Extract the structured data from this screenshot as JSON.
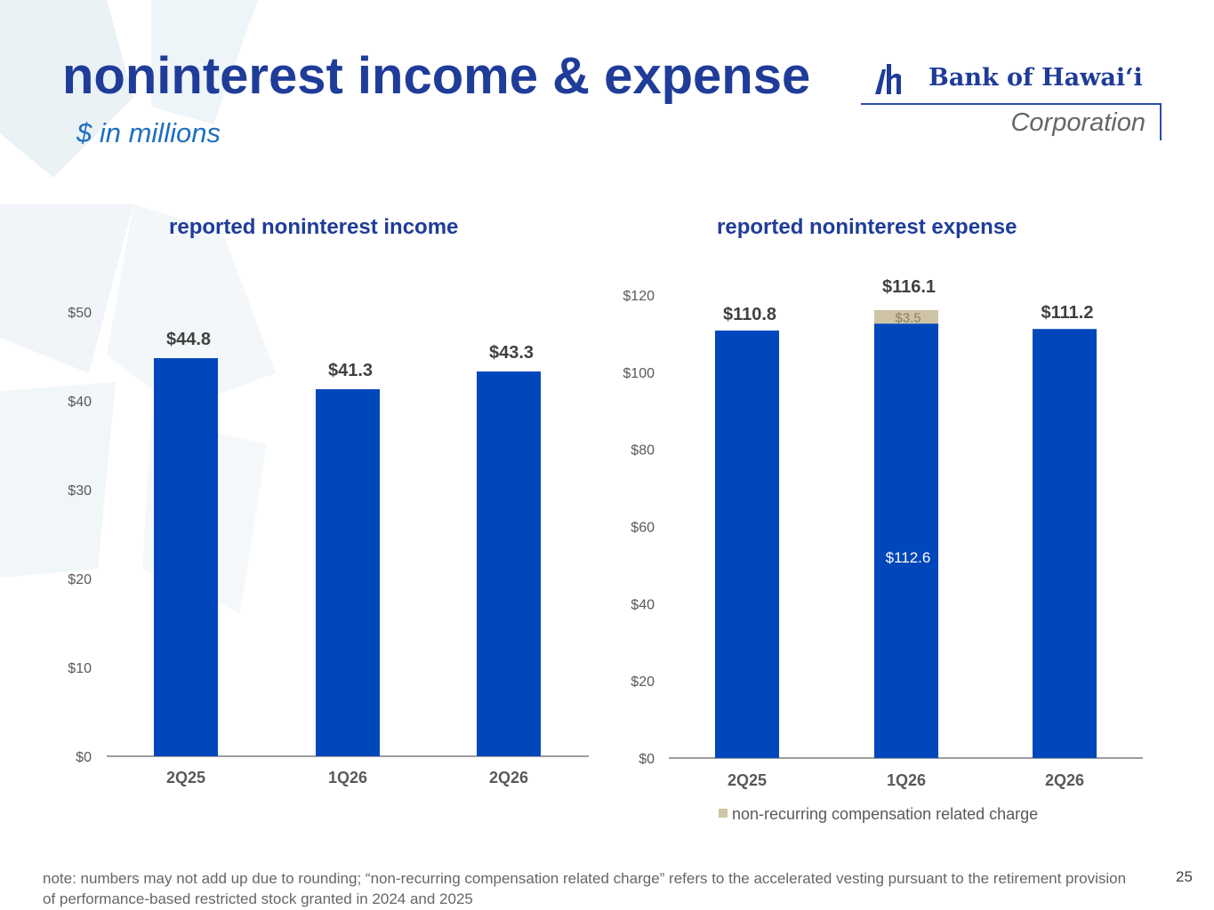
{
  "header": {
    "title": "noninterest income & expense",
    "subtitle": "$ in millions"
  },
  "logo": {
    "name": "Bank of Hawai‘i",
    "sub": "Corporation"
  },
  "colors": {
    "title": "#1f3c99",
    "subtitle": "#1f6fc0",
    "bar": "#0047bb",
    "charge": "#cfc4a4",
    "axis_text": "#595959",
    "label_text": "#404040"
  },
  "chart_data": [
    {
      "type": "bar",
      "title": "reported noninterest income",
      "categories": [
        "2Q25",
        "1Q26",
        "2Q26"
      ],
      "values": [
        44.8,
        41.3,
        43.3
      ],
      "value_labels": [
        "$44.8",
        "$41.3",
        "$43.3"
      ],
      "ylim": [
        0,
        50
      ],
      "yticks": [
        0,
        10,
        20,
        30,
        40,
        50
      ],
      "ytick_labels": [
        "$0",
        "$10",
        "$20",
        "$30",
        "$40",
        "$50"
      ],
      "grid": false
    },
    {
      "type": "bar",
      "stacked": true,
      "title": "reported noninterest expense",
      "categories": [
        "2Q25",
        "1Q26",
        "2Q26"
      ],
      "series": [
        {
          "values": [
            110.8,
            112.6,
            111.2
          ],
          "segment_labels": [
            "",
            "$112.6",
            ""
          ]
        },
        {
          "name": "non-recurring compensation related charge",
          "values": [
            0,
            3.5,
            0
          ],
          "segment_labels": [
            "",
            "$3.5",
            ""
          ]
        }
      ],
      "total_labels": [
        "$110.8",
        "$116.1",
        "$111.2"
      ],
      "ylim": [
        0,
        120
      ],
      "yticks": [
        0,
        20,
        40,
        60,
        80,
        100,
        120
      ],
      "ytick_labels": [
        "$0",
        "$20",
        "$40",
        "$60",
        "$80",
        "$100",
        "$120"
      ],
      "legend": "bottom",
      "grid": false
    }
  ],
  "footnote": "note: numbers may not add up due to rounding; “non-recurring compensation related charge” refers to the accelerated vesting pursuant to the retirement provision of performance-based restricted stock granted in 2024 and 2025",
  "page_number": "25"
}
